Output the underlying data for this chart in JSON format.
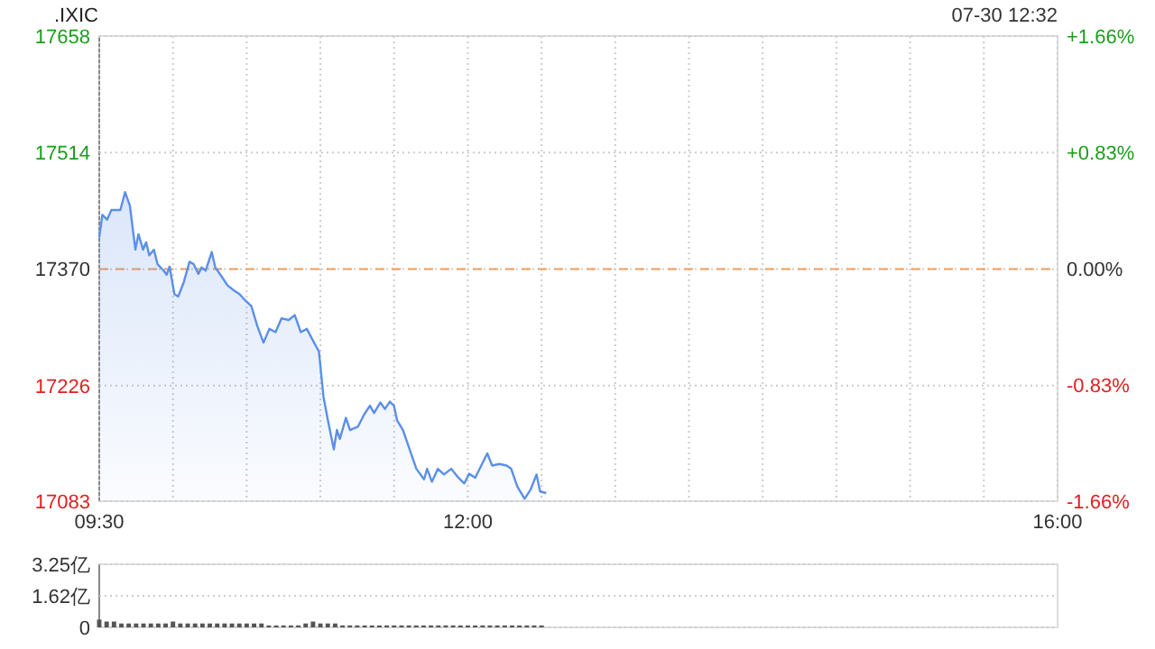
{
  "chart_data": [
    {
      "type": "area",
      "title": ".IXIC",
      "annotations": [
        "07-30 12:32"
      ],
      "xlim": [
        9.5,
        16
      ],
      "xticks": [
        {
          "value": 9.5,
          "label": "09:30"
        },
        {
          "value": 10,
          "label": null
        },
        {
          "value": 10.5,
          "label": null
        },
        {
          "value": 11,
          "label": null
        },
        {
          "value": 11.5,
          "label": null
        },
        {
          "value": 12,
          "label": "12:00"
        },
        {
          "value": 12.5,
          "label": null
        },
        {
          "value": 13,
          "label": null
        },
        {
          "value": 13.5,
          "label": null
        },
        {
          "value": 14,
          "label": null
        },
        {
          "value": 14.5,
          "label": null
        },
        {
          "value": 15,
          "label": null
        },
        {
          "value": 15.5,
          "label": null
        },
        {
          "value": 16,
          "label": "16:00"
        }
      ],
      "ylim": [
        17083,
        17658
      ],
      "yticks": [
        17083,
        17226,
        17370,
        17514,
        17658
      ],
      "y2lim": [
        -1.66,
        1.66
      ],
      "y2ticks": [
        {
          "value": -1.66,
          "label": "-1.66%"
        },
        {
          "value": -0.83,
          "label": "-0.83%"
        },
        {
          "value": 0,
          "label": "0.00%"
        },
        {
          "value": 0.83,
          "label": "+0.83%"
        },
        {
          "value": 1.66,
          "label": "+1.66%"
        }
      ],
      "grid": true,
      "ref_lines": [
        {
          "axis": "y",
          "value": 17370,
          "color": "#f0a060",
          "line_style": "dashed"
        }
      ],
      "series": [
        {
          "color": "#5b8fe8",
          "x": [
            9.5,
            9.521,
            9.553,
            9.582,
            9.643,
            9.675,
            9.708,
            9.745,
            9.766,
            9.797,
            9.818,
            9.839,
            9.871,
            9.895,
            9.937,
            9.957,
            9.977,
            10.01,
            10.035,
            10.072,
            10.112,
            10.14,
            10.173,
            10.194,
            10.222,
            10.263,
            10.287,
            10.329,
            10.369,
            10.409,
            10.451,
            10.491,
            10.532,
            10.573,
            10.614,
            10.654,
            10.696,
            10.736,
            10.785,
            10.826,
            10.867,
            10.908,
            10.957,
            10.99,
            11.021,
            11.051,
            11.091,
            11.112,
            11.132,
            11.173,
            11.201,
            11.254,
            11.296,
            11.336,
            11.364,
            11.406,
            11.438,
            11.471,
            11.499,
            11.52,
            11.56,
            11.609,
            11.651,
            11.703,
            11.724,
            11.756,
            11.797,
            11.838,
            11.887,
            11.936,
            11.976,
            12.009,
            12.05,
            12.091,
            12.132,
            12.165,
            12.214,
            12.263,
            12.294,
            12.336,
            12.385,
            12.425,
            12.466,
            12.49,
            12.532
          ],
          "values": [
            17409,
            17437,
            17431,
            17443,
            17443,
            17465,
            17448,
            17394,
            17413,
            17394,
            17403,
            17387,
            17394,
            17376,
            17368,
            17363,
            17373,
            17339,
            17336,
            17353,
            17379,
            17376,
            17364,
            17372,
            17368,
            17391,
            17372,
            17361,
            17350,
            17344,
            17339,
            17331,
            17324,
            17299,
            17279,
            17296,
            17292,
            17309,
            17307,
            17313,
            17292,
            17296,
            17279,
            17268,
            17212,
            17183,
            17147,
            17171,
            17160,
            17186,
            17171,
            17175,
            17190,
            17201,
            17192,
            17205,
            17197,
            17206,
            17201,
            17183,
            17171,
            17145,
            17123,
            17110,
            17123,
            17107,
            17123,
            17116,
            17123,
            17112,
            17105,
            17117,
            17112,
            17127,
            17142,
            17127,
            17129,
            17127,
            17123,
            17101,
            17086,
            17097,
            17116,
            17095,
            17093
          ]
        }
      ]
    },
    {
      "type": "bar",
      "xlim": [
        9.5,
        16
      ],
      "ylim": [
        0,
        3.25
      ],
      "yticks": [
        0,
        {
          "value": 1.62,
          "label": "1.62亿"
        },
        {
          "value": 3.25,
          "label": "3.25亿"
        }
      ],
      "grid": "y",
      "tick_labels": "y",
      "series": [
        {
          "color": "#555555",
          "x": [
            9.5,
            9.55,
            9.6,
            9.65,
            9.7,
            9.75,
            9.8,
            9.85,
            9.9,
            9.95,
            10,
            10.05,
            10.1,
            10.15,
            10.2,
            10.25,
            10.3,
            10.35,
            10.4,
            10.45,
            10.5,
            10.55,
            10.6,
            10.65,
            10.7,
            10.75,
            10.8,
            10.85,
            10.9,
            10.95,
            11,
            11.05,
            11.1,
            11.15,
            11.2,
            11.25,
            11.3,
            11.35,
            11.4,
            11.45,
            11.5,
            11.55,
            11.6,
            11.65,
            11.7,
            11.75,
            11.8,
            11.85,
            11.9,
            11.95,
            12,
            12.05,
            12.1,
            12.15,
            12.2,
            12.25,
            12.3,
            12.35,
            12.4,
            12.45,
            12.5
          ],
          "values": [
            0.4,
            0.3,
            0.3,
            0.2,
            0.2,
            0.2,
            0.2,
            0.2,
            0.2,
            0.2,
            0.3,
            0.2,
            0.2,
            0.2,
            0.2,
            0.2,
            0.2,
            0.2,
            0.2,
            0.2,
            0.2,
            0.2,
            0.2,
            0.1,
            0.1,
            0.1,
            0.1,
            0.1,
            0.2,
            0.3,
            0.2,
            0.2,
            0.2,
            0.1,
            0.1,
            0.1,
            0.1,
            0.1,
            0.1,
            0.1,
            0.1,
            0.1,
            0.1,
            0.1,
            0.1,
            0.1,
            0.1,
            0.1,
            0.1,
            0.1,
            0.1,
            0.1,
            0.1,
            0.1,
            0.1,
            0.1,
            0.1,
            0.1,
            0.1,
            0.1,
            0.1
          ]
        }
      ]
    }
  ]
}
